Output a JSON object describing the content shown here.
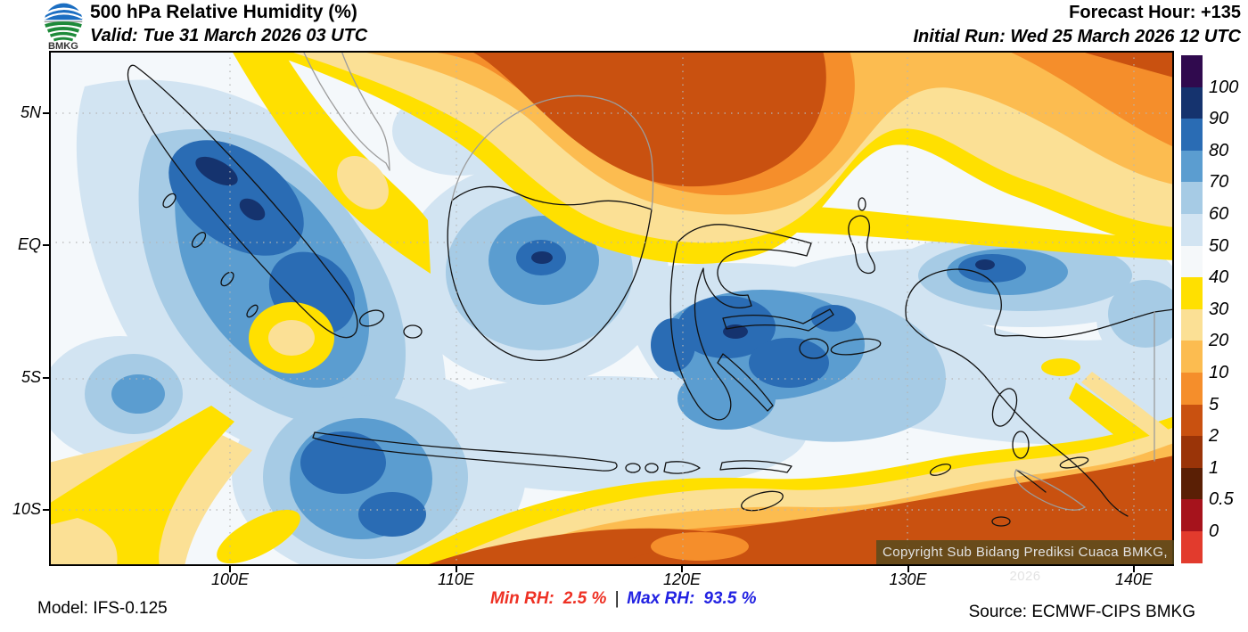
{
  "header": {
    "logo_text": "BMKG",
    "title": "500 hPa Relative Humidity (%)",
    "valid_label": "Valid: Tue 31 March 2026 03 UTC",
    "forecast_hour": "Forecast Hour: +135",
    "initial_run": "Initial Run: Wed 25 March 2026 12 UTC"
  },
  "map": {
    "lat_labels": [
      "5N",
      "EQ",
      "5S",
      "10S"
    ],
    "lon_labels": [
      "100E",
      "110E",
      "120E",
      "130E",
      "140E"
    ],
    "copyright": "Copyright Sub Bidang Prediksi Cuaca BMKG, 2026"
  },
  "colorbar": {
    "tick_labels": [
      "100",
      "90",
      "80",
      "70",
      "60",
      "50",
      "40",
      "30",
      "20",
      "10",
      "5",
      "2",
      "1",
      "0.5",
      "0"
    ],
    "band_colors": [
      "#300A4E",
      "#15336E",
      "#2A6CB4",
      "#5B9DD0",
      "#A6CBE5",
      "#D2E4F2",
      "#F5F8FA",
      "#FFE000",
      "#FBE095",
      "#FCBC50",
      "#F58E2B",
      "#C95110",
      "#9A3408",
      "#5A1F05",
      "#A6131C",
      "#E23B2D"
    ]
  },
  "footer": {
    "model": "Model: IFS-0.125",
    "min_rh_label": "Min RH:",
    "min_rh_value": "2.5 %",
    "separator": "|",
    "max_rh_label": "Max RH:",
    "max_rh_value": "93.5 %",
    "source": "Source: ECMWF-CIPS BMKG"
  },
  "accent_colors": {
    "min_rh_text": "#EE3124",
    "max_rh_text": "#2222E2",
    "land_outline": "#111111",
    "foreign_outline": "#9C9C9C"
  }
}
